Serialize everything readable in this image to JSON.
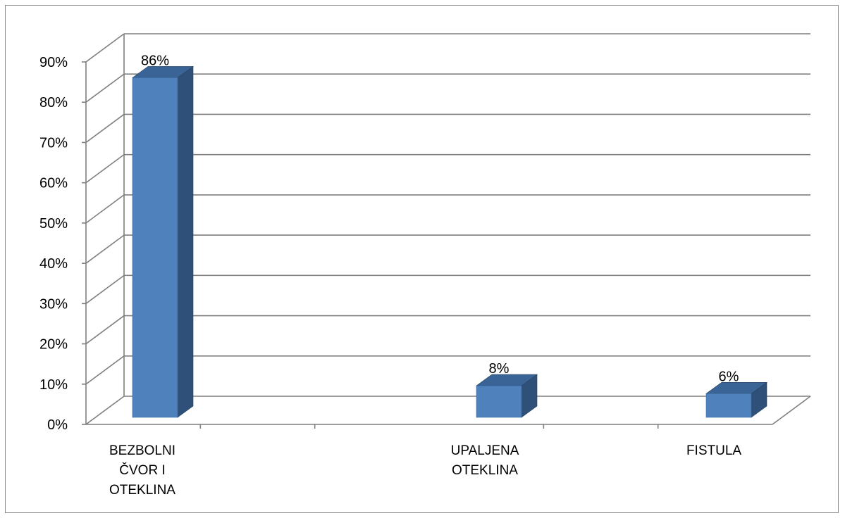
{
  "chart_data": {
    "type": "bar",
    "style": "3d-column",
    "categories": [
      "BEZBOLNI ČVOR I OTEKLINA",
      "UPALJENA OTEKLINA",
      "FISTULA"
    ],
    "category_lines": [
      [
        "BEZBOLNI",
        "ČVOR I",
        "OTEKLINA"
      ],
      [
        "UPALJENA",
        "OTEKLINA"
      ],
      [
        "FISTULA"
      ]
    ],
    "values": [
      86,
      8,
      6
    ],
    "data_labels": [
      "86%",
      "8%",
      "6%"
    ],
    "y_ticks": [
      "0%",
      "10%",
      "20%",
      "30%",
      "40%",
      "50%",
      "60%",
      "70%",
      "80%",
      "90%"
    ],
    "ylim": [
      0,
      90
    ],
    "title": "",
    "xlabel": "",
    "ylabel": "",
    "grid": true,
    "legend": "none",
    "colors": {
      "bar_front": "#4f81bd",
      "bar_side": "#2f5179",
      "bar_top": "#3a6496",
      "grid": "#7f7f7f"
    }
  }
}
